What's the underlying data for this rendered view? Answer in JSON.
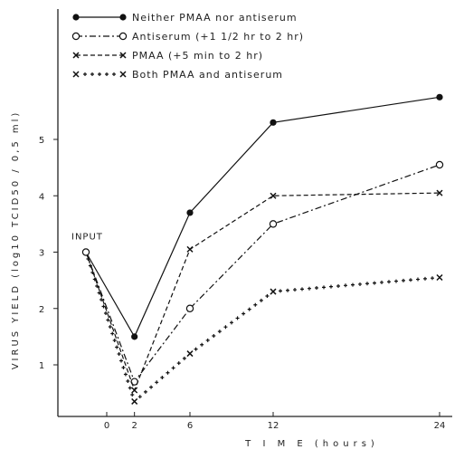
{
  "chart_data": {
    "type": "line",
    "title": "",
    "xlabel": "T I M E (hours)",
    "ylabel": "VIRUS YIELD (log10 TCID50 / 0,5 ml)",
    "x_ticks": [
      0,
      2,
      6,
      12,
      24
    ],
    "y_ticks": [
      1,
      2,
      3,
      4,
      5
    ],
    "xlim": [
      -1.5,
      24.5
    ],
    "ylim": [
      0.15,
      6.2
    ],
    "grid": false,
    "legend_position": "top-left",
    "annotations": [
      {
        "text": "INPUT",
        "x": -1.5,
        "y": 3
      }
    ],
    "series": [
      {
        "name": "Neither PMAA nor antiserum",
        "marker": "filled-circle",
        "line": "solid",
        "x": [
          -1.5,
          2,
          6,
          12,
          24
        ],
        "y": [
          3.0,
          1.5,
          3.7,
          5.3,
          5.75
        ]
      },
      {
        "name": "Antiserum (+1 1/2 hr to 2 hr)",
        "marker": "open-circle",
        "line": "dash-dot",
        "x": [
          -1.5,
          2,
          6,
          12,
          24
        ],
        "y": [
          3.0,
          0.7,
          2.0,
          3.5,
          4.55
        ]
      },
      {
        "name": "PMAA (+5 min to 2 hr)",
        "marker": "x",
        "line": "dashed",
        "x": [
          -1.5,
          2,
          6,
          12,
          24
        ],
        "y": [
          3.0,
          0.55,
          3.05,
          4.0,
          4.05
        ]
      },
      {
        "name": "Both PMAA and antiserum",
        "marker": "x",
        "line": "plus-dotted",
        "x": [
          -1.5,
          2,
          6,
          12,
          24
        ],
        "y": [
          3.0,
          0.35,
          1.2,
          2.3,
          2.55
        ]
      }
    ]
  }
}
